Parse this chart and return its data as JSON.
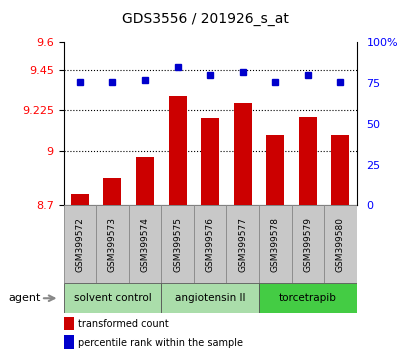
{
  "title": "GDS3556 / 201926_s_at",
  "samples": [
    "GSM399572",
    "GSM399573",
    "GSM399574",
    "GSM399575",
    "GSM399576",
    "GSM399577",
    "GSM399578",
    "GSM399579",
    "GSM399580"
  ],
  "transformed_count": [
    8.76,
    8.85,
    8.965,
    9.305,
    9.185,
    9.265,
    9.09,
    9.19,
    9.09
  ],
  "percentile_rank": [
    76,
    76,
    77,
    85,
    80,
    82,
    76,
    80,
    76
  ],
  "ylim_left": [
    8.7,
    9.6
  ],
  "ylim_right": [
    0,
    100
  ],
  "yticks_left": [
    8.7,
    9.0,
    9.225,
    9.45,
    9.6
  ],
  "ytick_labels_left": [
    "8.7",
    "9",
    "9.225",
    "9.45",
    "9.6"
  ],
  "yticks_right": [
    0,
    25,
    50,
    75,
    100
  ],
  "ytick_labels_right": [
    "0",
    "25",
    "50",
    "75",
    "100%"
  ],
  "bar_color": "#cc0000",
  "dot_color": "#0000cc",
  "gridlines": [
    9.0,
    9.225,
    9.45
  ],
  "groups": [
    {
      "label": "solvent control",
      "indices": [
        0,
        1,
        2
      ],
      "color": "#aaddaa"
    },
    {
      "label": "angiotensin II",
      "indices": [
        3,
        4,
        5
      ],
      "color": "#aaddaa"
    },
    {
      "label": "torcetrapib",
      "indices": [
        6,
        7,
        8
      ],
      "color": "#44cc44"
    }
  ],
  "group_bg_color": "#c8c8c8",
  "legend_items": [
    {
      "color": "#cc0000",
      "label": "transformed count"
    },
    {
      "color": "#0000cc",
      "label": "percentile rank within the sample"
    }
  ],
  "agent_label": "agent"
}
